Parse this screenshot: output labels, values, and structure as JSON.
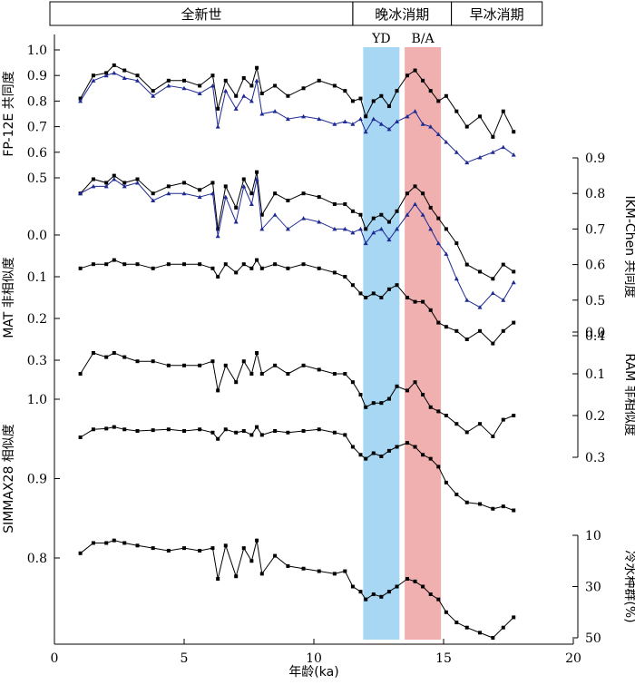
{
  "chart_data": {
    "type": "line",
    "xlabel": "年龄(ka)",
    "x_ticks": [
      0,
      5,
      10,
      15,
      20
    ],
    "xlim": [
      0,
      20
    ],
    "epochs": [
      {
        "label": "全新世",
        "from": -2,
        "to": 11.5
      },
      {
        "label": "晚冰消期",
        "from": 11.5,
        "to": 15.3
      },
      {
        "label": "早冰消期",
        "from": 15.3,
        "to": 18.8
      }
    ],
    "bands": [
      {
        "label": "YD",
        "from": 11.9,
        "to": 13.3,
        "color": "#a7d7f3"
      },
      {
        "label": "B/A",
        "from": 13.5,
        "to": 14.9,
        "color": "#f1b0b0"
      }
    ],
    "series_colors": {
      "black": "#000000",
      "blue": "#1e2a94"
    },
    "panels": [
      {
        "axis_side": "left",
        "ylabel": "FP-12E 共同度",
        "ticks": [
          0.5,
          0.6,
          0.7,
          0.8,
          0.9,
          1.0
        ],
        "tick_labels": [
          "0.5",
          "0.6",
          "0.7",
          "0.8",
          "0.9",
          "1.0"
        ],
        "series": [
          {
            "color": "black",
            "x": [
              1.0,
              1.5,
              2.0,
              2.3,
              2.7,
              3.2,
              3.8,
              4.4,
              5.0,
              5.6,
              6.1,
              6.3,
              6.6,
              7.0,
              7.3,
              7.6,
              7.8,
              8.0,
              8.5,
              9.0,
              9.6,
              10.2,
              10.8,
              11.2,
              11.5,
              11.8,
              12.0,
              12.3,
              12.6,
              12.9,
              13.2,
              13.6,
              13.9,
              14.2,
              14.5,
              14.8,
              15.1,
              15.5,
              15.9,
              16.4,
              16.9,
              17.3,
              17.7
            ],
            "y": [
              0.81,
              0.9,
              0.91,
              0.94,
              0.92,
              0.9,
              0.84,
              0.88,
              0.88,
              0.86,
              0.9,
              0.77,
              0.88,
              0.82,
              0.89,
              0.86,
              0.93,
              0.83,
              0.86,
              0.82,
              0.85,
              0.88,
              0.86,
              0.84,
              0.8,
              0.81,
              0.74,
              0.8,
              0.82,
              0.78,
              0.84,
              0.9,
              0.92,
              0.88,
              0.84,
              0.8,
              0.82,
              0.76,
              0.7,
              0.74,
              0.66,
              0.76,
              0.68
            ]
          },
          {
            "color": "blue",
            "x": [
              1.0,
              1.5,
              2.0,
              2.3,
              2.7,
              3.2,
              3.8,
              4.4,
              5.0,
              5.6,
              6.1,
              6.3,
              6.6,
              7.0,
              7.3,
              7.6,
              7.8,
              8.0,
              8.5,
              9.0,
              9.6,
              10.2,
              10.8,
              11.2,
              11.5,
              11.8,
              12.0,
              12.3,
              12.6,
              12.9,
              13.2,
              13.6,
              13.9,
              14.2,
              14.5,
              14.8,
              15.1,
              15.5,
              15.9,
              16.4,
              16.9,
              17.3,
              17.7
            ],
            "y": [
              0.8,
              0.88,
              0.9,
              0.91,
              0.89,
              0.88,
              0.82,
              0.86,
              0.85,
              0.83,
              0.86,
              0.7,
              0.84,
              0.77,
              0.82,
              0.8,
              0.88,
              0.75,
              0.76,
              0.73,
              0.74,
              0.73,
              0.71,
              0.72,
              0.71,
              0.73,
              0.68,
              0.73,
              0.71,
              0.69,
              0.72,
              0.74,
              0.76,
              0.71,
              0.7,
              0.67,
              0.64,
              0.6,
              0.56,
              0.58,
              0.6,
              0.62,
              0.59
            ]
          }
        ]
      },
      {
        "axis_side": "right",
        "ylabel": "IKM-Chen 共同度",
        "ticks": [
          0.4,
          0.5,
          0.6,
          0.7,
          0.8,
          0.9
        ],
        "tick_labels": [
          "0.4",
          "0.5",
          "0.6",
          "0.7",
          "0.8",
          "0.9"
        ],
        "series": [
          {
            "color": "black",
            "x": [
              1.0,
              1.5,
              2.0,
              2.3,
              2.7,
              3.2,
              3.8,
              4.4,
              5.0,
              5.6,
              6.1,
              6.3,
              6.6,
              7.0,
              7.3,
              7.6,
              7.8,
              8.0,
              8.5,
              9.0,
              9.6,
              10.2,
              10.8,
              11.2,
              11.5,
              11.8,
              12.0,
              12.3,
              12.6,
              12.9,
              13.2,
              13.6,
              13.9,
              14.2,
              14.5,
              14.8,
              15.1,
              15.5,
              15.9,
              16.4,
              16.9,
              17.3,
              17.7
            ],
            "y": [
              0.8,
              0.84,
              0.83,
              0.85,
              0.83,
              0.84,
              0.8,
              0.82,
              0.83,
              0.81,
              0.83,
              0.7,
              0.82,
              0.76,
              0.84,
              0.8,
              0.86,
              0.74,
              0.8,
              0.78,
              0.8,
              0.79,
              0.77,
              0.77,
              0.75,
              0.74,
              0.7,
              0.73,
              0.74,
              0.72,
              0.75,
              0.8,
              0.82,
              0.8,
              0.76,
              0.73,
              0.7,
              0.66,
              0.6,
              0.58,
              0.56,
              0.6,
              0.58
            ]
          },
          {
            "color": "blue",
            "x": [
              1.0,
              1.5,
              2.0,
              2.3,
              2.7,
              3.2,
              3.8,
              4.4,
              5.0,
              5.6,
              6.1,
              6.3,
              6.6,
              7.0,
              7.3,
              7.6,
              7.8,
              8.0,
              8.5,
              9.0,
              9.6,
              10.2,
              10.8,
              11.2,
              11.5,
              11.8,
              12.0,
              12.3,
              12.6,
              12.9,
              13.2,
              13.6,
              13.9,
              14.2,
              14.5,
              14.8,
              15.1,
              15.5,
              15.9,
              16.4,
              16.9,
              17.3,
              17.7
            ],
            "y": [
              0.8,
              0.82,
              0.82,
              0.84,
              0.82,
              0.83,
              0.78,
              0.8,
              0.8,
              0.79,
              0.8,
              0.68,
              0.79,
              0.72,
              0.82,
              0.77,
              0.84,
              0.7,
              0.74,
              0.7,
              0.73,
              0.72,
              0.7,
              0.7,
              0.69,
              0.7,
              0.66,
              0.69,
              0.7,
              0.67,
              0.7,
              0.74,
              0.77,
              0.74,
              0.7,
              0.66,
              0.63,
              0.56,
              0.5,
              0.48,
              0.52,
              0.5,
              0.55
            ]
          }
        ]
      },
      {
        "axis_side": "left",
        "ylabel": "MAT 非相似度",
        "ticks": [
          0.0,
          0.1,
          0.2,
          0.3
        ],
        "tick_labels": [
          "0.0",
          "0.1",
          "0.2",
          "0.3"
        ],
        "inverted": true,
        "series": [
          {
            "color": "black",
            "x": [
              1.0,
              1.5,
              2.0,
              2.3,
              2.7,
              3.2,
              3.8,
              4.4,
              5.0,
              5.6,
              6.1,
              6.3,
              6.6,
              7.0,
              7.3,
              7.6,
              7.8,
              8.0,
              8.5,
              9.0,
              9.6,
              10.2,
              10.8,
              11.2,
              11.5,
              11.8,
              12.0,
              12.3,
              12.6,
              12.9,
              13.2,
              13.6,
              13.9,
              14.2,
              14.5,
              14.8,
              15.1,
              15.5,
              15.9,
              16.4,
              16.9,
              17.3,
              17.7
            ],
            "y": [
              0.08,
              0.07,
              0.07,
              0.06,
              0.07,
              0.07,
              0.08,
              0.07,
              0.07,
              0.07,
              0.08,
              0.1,
              0.07,
              0.09,
              0.07,
              0.08,
              0.06,
              0.08,
              0.07,
              0.08,
              0.07,
              0.08,
              0.09,
              0.1,
              0.12,
              0.14,
              0.15,
              0.14,
              0.15,
              0.13,
              0.12,
              0.15,
              0.16,
              0.16,
              0.18,
              0.21,
              0.22,
              0.23,
              0.25,
              0.23,
              0.26,
              0.23,
              0.21
            ]
          }
        ]
      },
      {
        "axis_side": "right",
        "ylabel": "RAM 非相似度",
        "ticks": [
          0.0,
          0.1,
          0.2,
          0.3
        ],
        "tick_labels": [
          "0.0",
          "0.1",
          "0.2",
          "0.3"
        ],
        "inverted": true,
        "series": [
          {
            "color": "black",
            "x": [
              1.0,
              1.5,
              2.0,
              2.3,
              2.7,
              3.2,
              3.8,
              4.4,
              5.0,
              5.6,
              6.1,
              6.3,
              6.6,
              7.0,
              7.3,
              7.6,
              7.8,
              8.0,
              8.5,
              9.0,
              9.6,
              10.2,
              10.8,
              11.2,
              11.5,
              11.8,
              12.0,
              12.3,
              12.6,
              12.9,
              13.2,
              13.6,
              13.9,
              14.2,
              14.5,
              14.8,
              15.1,
              15.5,
              15.9,
              16.4,
              16.9,
              17.3,
              17.7
            ],
            "y": [
              0.1,
              0.05,
              0.06,
              0.05,
              0.06,
              0.07,
              0.07,
              0.08,
              0.08,
              0.08,
              0.07,
              0.14,
              0.08,
              0.12,
              0.07,
              0.1,
              0.05,
              0.1,
              0.08,
              0.1,
              0.08,
              0.09,
              0.1,
              0.1,
              0.12,
              0.15,
              0.18,
              0.17,
              0.17,
              0.16,
              0.13,
              0.14,
              0.12,
              0.15,
              0.18,
              0.19,
              0.2,
              0.22,
              0.24,
              0.22,
              0.25,
              0.21,
              0.2
            ]
          }
        ]
      },
      {
        "axis_side": "left",
        "ylabel": "SIMMAX28 相似度",
        "ticks": [
          0.8,
          0.9,
          1.0
        ],
        "tick_labels": [
          "0.8",
          "0.9",
          "1.0"
        ],
        "series": [
          {
            "color": "black",
            "x": [
              1.0,
              1.5,
              2.0,
              2.3,
              2.7,
              3.2,
              3.8,
              4.4,
              5.0,
              5.6,
              6.1,
              6.3,
              6.6,
              7.0,
              7.3,
              7.6,
              7.8,
              8.0,
              8.5,
              9.0,
              9.6,
              10.2,
              10.8,
              11.2,
              11.5,
              11.8,
              12.0,
              12.3,
              12.6,
              12.9,
              13.2,
              13.6,
              13.9,
              14.2,
              14.5,
              14.8,
              15.1,
              15.5,
              15.9,
              16.4,
              16.9,
              17.3,
              17.7
            ],
            "y": [
              0.952,
              0.962,
              0.963,
              0.965,
              0.962,
              0.96,
              0.961,
              0.962,
              0.96,
              0.962,
              0.958,
              0.95,
              0.962,
              0.958,
              0.96,
              0.955,
              0.965,
              0.955,
              0.96,
              0.958,
              0.96,
              0.962,
              0.958,
              0.955,
              0.94,
              0.93,
              0.925,
              0.932,
              0.928,
              0.935,
              0.94,
              0.945,
              0.94,
              0.93,
              0.925,
              0.915,
              0.895,
              0.88,
              0.87,
              0.868,
              0.862,
              0.865,
              0.86
            ]
          }
        ]
      },
      {
        "axis_side": "right",
        "ylabel": "冷水种群(%)",
        "ticks": [
          10,
          30,
          50
        ],
        "tick_labels": [
          "10",
          "30",
          "50"
        ],
        "inverted": true,
        "series": [
          {
            "color": "black",
            "x": [
              1.0,
              1.5,
              2.0,
              2.3,
              2.7,
              3.2,
              3.8,
              4.4,
              5.0,
              5.6,
              6.1,
              6.3,
              6.6,
              7.0,
              7.3,
              7.6,
              7.8,
              8.0,
              8.5,
              9.0,
              9.6,
              10.2,
              10.8,
              11.2,
              11.5,
              11.8,
              12.0,
              12.3,
              12.6,
              12.9,
              13.2,
              13.6,
              13.9,
              14.2,
              14.5,
              14.8,
              15.1,
              15.5,
              15.9,
              16.4,
              16.9,
              17.3,
              17.7
            ],
            "y": [
              17,
              13,
              13,
              12,
              13,
              14,
              15,
              16,
              15,
              16,
              15,
              27,
              14,
              26,
              15,
              20,
              12,
              25,
              18,
              22,
              23,
              24,
              25,
              24,
              30,
              32,
              35,
              33,
              34,
              32,
              30,
              27,
              28,
              30,
              33,
              35,
              40,
              44,
              46,
              48,
              50,
              46,
              42
            ]
          }
        ]
      }
    ],
    "series_offsets": [
      0.55,
      0.58,
      0.58,
      0.55,
      0.55,
      0.55
    ]
  }
}
